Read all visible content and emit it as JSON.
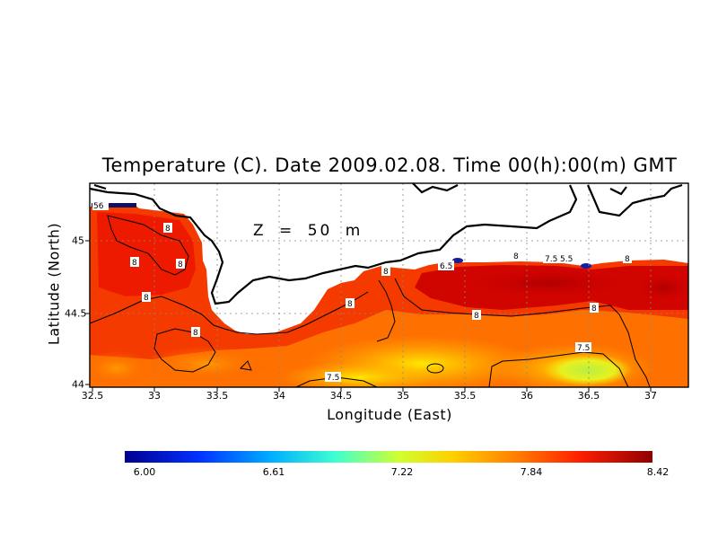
{
  "map": {
    "title": "Temperature (C). Date 2009.02.08. Time 00(h):00(m) GMT",
    "depth_label": "Z = 50 m",
    "x_axis": {
      "label": "Longitude (East)",
      "ticks": [
        "32.5",
        "33",
        "33.5",
        "34",
        "34.5",
        "35",
        "35.5",
        "36",
        "36.5",
        "37"
      ]
    },
    "y_axis": {
      "label": "Latitude (North)",
      "ticks": [
        "44",
        "44.5",
        "45"
      ]
    },
    "extent": {
      "lon": [
        32.5,
        37.3
      ],
      "lat": [
        44.0,
        45.35
      ]
    },
    "contour_labels": [
      "8",
      "8",
      "8",
      "8",
      "8",
      "8",
      "8",
      "8",
      "8",
      "8",
      "7.5",
      "7.5",
      "6.5",
      "7.5",
      "5.5",
      "56"
    ],
    "colorbar": {
      "ticks": [
        "6.00",
        "6.61",
        "7.22",
        "7.84",
        "8.42"
      ],
      "range": [
        6.0,
        8.42
      ],
      "colors": [
        "#00008f",
        "#0030ff",
        "#00b0ff",
        "#40ffd0",
        "#d0ff30",
        "#ffd000",
        "#ff8000",
        "#ff2000",
        "#8f0000"
      ]
    }
  }
}
